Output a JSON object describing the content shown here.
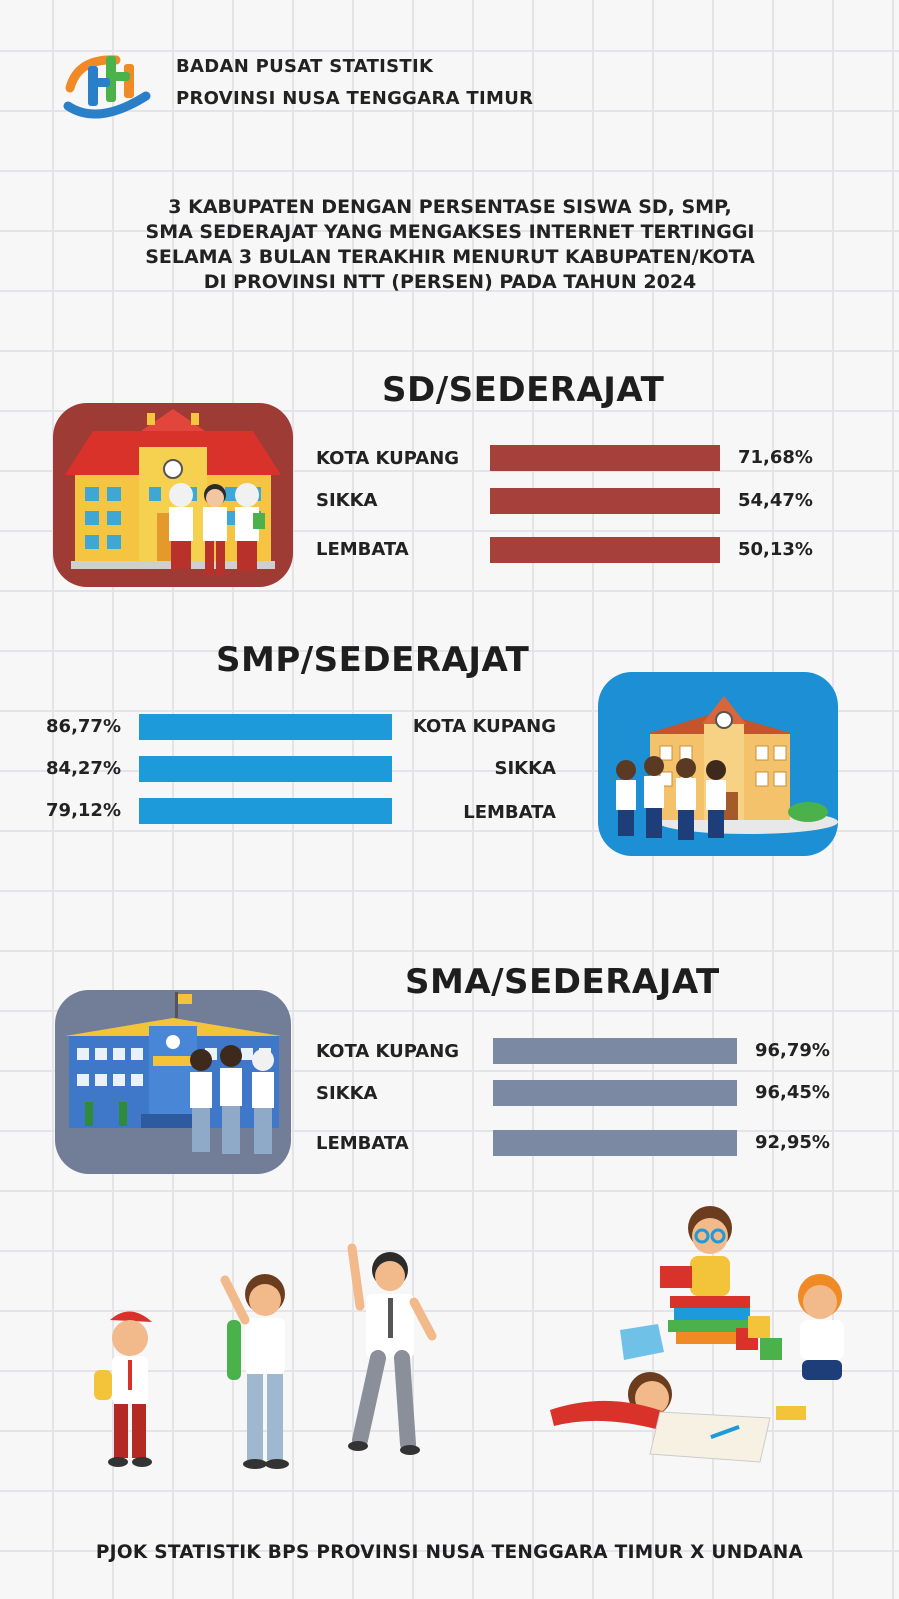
{
  "header": {
    "org_line1": "BADAN PUSAT STATISTIK",
    "org_line2": "PROVINSI NUSA TENGGARA TIMUR",
    "logo_icon": "bps-logo-icon"
  },
  "title_lines": [
    "3 KABUPATEN DENGAN  PERSENTASE SISWA SD, SMP,",
    "SMA SEDERAJAT YANG MENGAKSES INTERNET TERTINGGI",
    "SELAMA 3 BULAN TERAKHIR MENURUT KABUPATEN/KOTA",
    "DI PROVINSI NTT (PERSEN) PADA TAHUN 2024"
  ],
  "chart_data": [
    {
      "type": "bar",
      "orientation": "horizontal",
      "title": "SD/SEDERAJAT",
      "categories": [
        "KOTA KUPANG",
        "SIKKA",
        "LEMBATA"
      ],
      "values": [
        71.68,
        54.47,
        50.13
      ],
      "value_labels": [
        "71,68%",
        "54,47%",
        "50,13%"
      ],
      "color": "#a5413a",
      "panel_color": "#9e3b35",
      "xlim": [
        0,
        100
      ]
    },
    {
      "type": "bar",
      "orientation": "horizontal",
      "title": "SMP/SEDERAJAT",
      "categories": [
        "KOTA KUPANG",
        "SIKKA",
        "LEMBATA"
      ],
      "values": [
        86.77,
        84.27,
        79.12
      ],
      "value_labels": [
        "86,77%",
        "84,27%",
        "79,12%"
      ],
      "color": "#1d9ad9",
      "panel_color": "#1d8fd4",
      "xlim": [
        0,
        100
      ]
    },
    {
      "type": "bar",
      "orientation": "horizontal",
      "title": "SMA/SEDERAJAT",
      "categories": [
        "KOTA KUPANG",
        "SIKKA",
        "LEMBATA"
      ],
      "values": [
        96.79,
        96.45,
        92.95
      ],
      "value_labels": [
        "96,79%",
        "96,45%",
        "92,95%"
      ],
      "color": "#7c89a3",
      "panel_color": "#727e97",
      "xlim": [
        0,
        100
      ]
    }
  ],
  "illustrations": {
    "sd": "school-building-sd-students-illustration",
    "smp": "school-building-smp-students-illustration",
    "sma": "school-building-sma-students-illustration",
    "bottom": "students-and-children-illustration"
  },
  "footer": "PJOK STATISTIK BPS PROVINSI NUSA TENGGARA TIMUR X UNDANA"
}
